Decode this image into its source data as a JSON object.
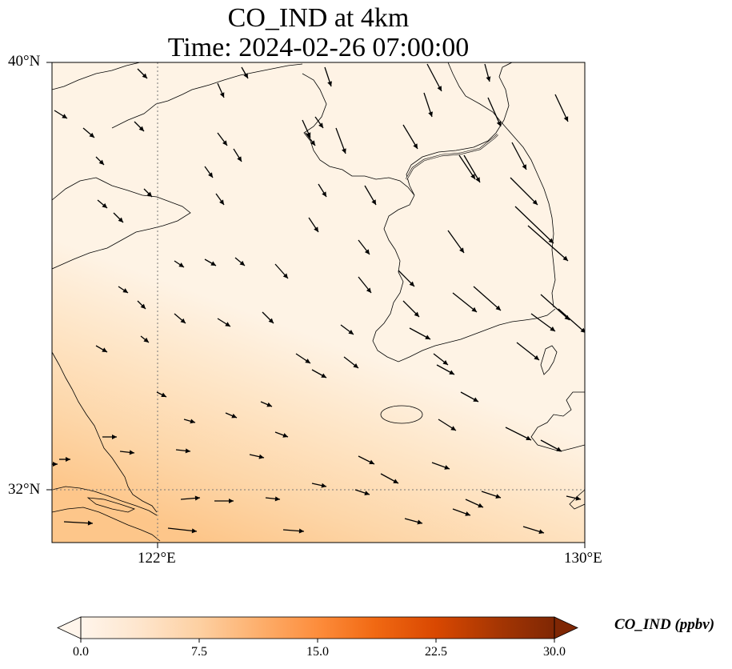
{
  "map": {
    "title": "CO_IND at 4km",
    "subtitle": "Time: 2024-02-26 07:00:00",
    "lat_range": [
      31.0,
      40.0
    ],
    "lon_range": [
      119.5,
      130.0
    ],
    "lat_ticks": [
      {
        "value": 40,
        "label": "40°N"
      },
      {
        "value": 32,
        "label": "32°N"
      }
    ],
    "lon_ticks": [
      {
        "value": 122,
        "label": "122°E"
      },
      {
        "value": 130,
        "label": "130°E"
      }
    ],
    "gridlines": "dotted at 122°E and 32°N"
  },
  "colorbar": {
    "label": "CO_IND (ppbv)",
    "ticks": [
      "0.0",
      "7.5",
      "15.0",
      "22.5",
      "30.0"
    ],
    "min": 0,
    "max": 30,
    "extend": "both",
    "colors": [
      "#fff5eb",
      "#fee6ce",
      "#fdd0a2",
      "#fdae6b",
      "#fd8d3c",
      "#f16913",
      "#d94801",
      "#a63603",
      "#7f2704"
    ]
  },
  "colors": {
    "land": "#fef3e6",
    "high_concentration": "#fdc98a",
    "coastline": "#000000",
    "wind_arrow": "#000000"
  }
}
